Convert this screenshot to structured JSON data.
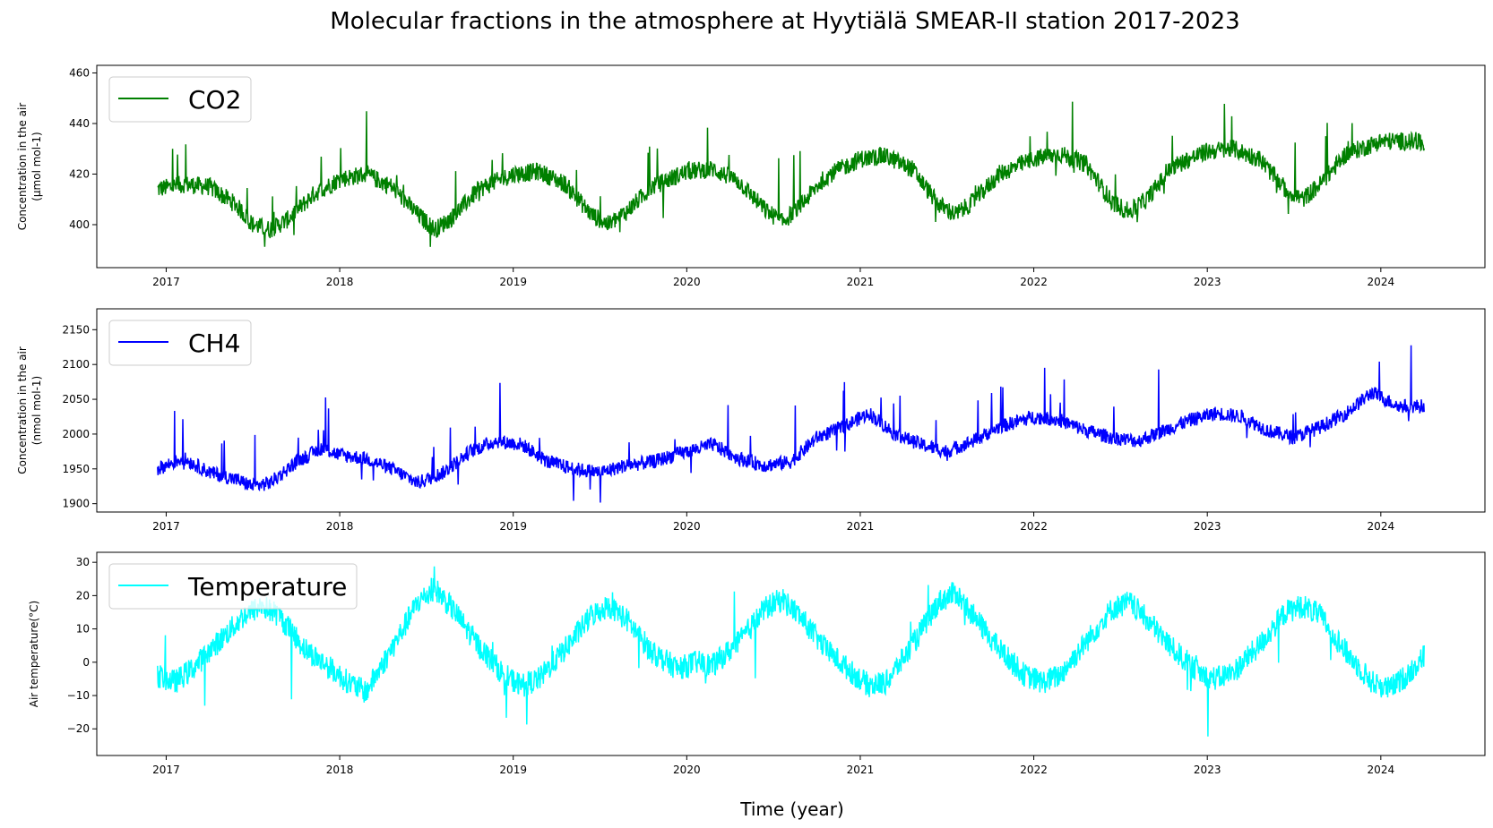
{
  "figure": {
    "title": "Molecular fractions in the atmosphere at Hyytiälä SMEAR-II station 2017-2023",
    "xlabel": "Time (year)"
  },
  "chart_data": [
    {
      "type": "line",
      "series_name": "CO2",
      "color": "#008000",
      "ylabel": [
        "Concentration in the air",
        "(μmol mol-1)"
      ],
      "xlim": [
        2016.6,
        2024.6
      ],
      "ylim": [
        383,
        463
      ],
      "xticks": [
        2017,
        2018,
        2019,
        2020,
        2021,
        2022,
        2023,
        2024
      ],
      "xtick_labels": [
        "2017",
        "2018",
        "2019",
        "2020",
        "2021",
        "2022",
        "2023",
        "2024"
      ],
      "yticks": [
        400,
        420,
        440,
        460
      ],
      "ytick_labels": [
        "400",
        "420",
        "440",
        "460"
      ],
      "legend": "top-left",
      "x": [
        2016.95,
        2017.1,
        2017.25,
        2017.4,
        2017.5,
        2017.6,
        2017.7,
        2017.85,
        2018.0,
        2018.15,
        2018.3,
        2018.45,
        2018.55,
        2018.65,
        2018.8,
        2019.0,
        2019.15,
        2019.3,
        2019.45,
        2019.55,
        2019.65,
        2019.8,
        2020.0,
        2020.15,
        2020.3,
        2020.45,
        2020.55,
        2020.65,
        2020.8,
        2021.0,
        2021.15,
        2021.3,
        2021.45,
        2021.55,
        2021.65,
        2021.8,
        2022.0,
        2022.15,
        2022.3,
        2022.45,
        2022.55,
        2022.65,
        2022.8,
        2023.0,
        2023.15,
        2023.3,
        2023.45,
        2023.55,
        2023.65,
        2023.8,
        2024.0,
        2024.15,
        2024.25
      ],
      "y": [
        414,
        416,
        415,
        408,
        400,
        398,
        402,
        412,
        418,
        420,
        415,
        404,
        398,
        403,
        414,
        420,
        421,
        416,
        404,
        400,
        405,
        415,
        421,
        422,
        417,
        406,
        401,
        407,
        419,
        426,
        427,
        422,
        408,
        404,
        409,
        420,
        426,
        428,
        424,
        409,
        405,
        410,
        423,
        429,
        430,
        426,
        414,
        410,
        416,
        428,
        433,
        433,
        432
      ]
    },
    {
      "type": "line",
      "series_name": "CH4",
      "color": "#0000ff",
      "ylabel": [
        "Concentration in the air",
        "(nmol mol-1)"
      ],
      "xlim": [
        2016.6,
        2024.6
      ],
      "ylim": [
        1888,
        2180
      ],
      "xticks": [
        2017,
        2018,
        2019,
        2020,
        2021,
        2022,
        2023,
        2024
      ],
      "xtick_labels": [
        "2017",
        "2018",
        "2019",
        "2020",
        "2021",
        "2022",
        "2023",
        "2024"
      ],
      "yticks": [
        1900,
        1950,
        2000,
        2050,
        2100,
        2150
      ],
      "ytick_labels": [
        "1900",
        "1950",
        "2000",
        "2050",
        "2100",
        "2150"
      ],
      "legend": "top-left",
      "x": [
        2016.95,
        2017.1,
        2017.25,
        2017.4,
        2017.5,
        2017.6,
        2017.75,
        2017.9,
        2018.0,
        2018.15,
        2018.3,
        2018.45,
        2018.6,
        2018.75,
        2018.9,
        2019.05,
        2019.2,
        2019.35,
        2019.5,
        2019.65,
        2019.8,
        2020.0,
        2020.15,
        2020.3,
        2020.45,
        2020.6,
        2020.75,
        2020.9,
        2021.05,
        2021.2,
        2021.35,
        2021.5,
        2021.65,
        2021.8,
        2022.0,
        2022.15,
        2022.3,
        2022.45,
        2022.6,
        2022.75,
        2022.9,
        2023.05,
        2023.2,
        2023.35,
        2023.5,
        2023.65,
        2023.8,
        2023.95,
        2024.1,
        2024.25
      ],
      "y": [
        1950,
        1965,
        1945,
        1935,
        1925,
        1930,
        1960,
        1980,
        1970,
        1965,
        1950,
        1930,
        1945,
        1975,
        1990,
        1985,
        1960,
        1950,
        1945,
        1955,
        1960,
        1975,
        1985,
        1965,
        1955,
        1960,
        1995,
        2010,
        2030,
        2000,
        1985,
        1975,
        1990,
        2010,
        2025,
        2020,
        2005,
        1995,
        1990,
        2005,
        2020,
        2030,
        2025,
        2005,
        1995,
        2010,
        2030,
        2060,
        2040,
        2040
      ]
    },
    {
      "type": "line",
      "series_name": "Temperature",
      "color": "#00ffff",
      "ylabel": [
        "Air temperature(°C)"
      ],
      "xlim": [
        2016.6,
        2024.6
      ],
      "ylim": [
        -28,
        33
      ],
      "xticks": [
        2017,
        2018,
        2019,
        2020,
        2021,
        2022,
        2023,
        2024
      ],
      "xtick_labels": [
        "2017",
        "2018",
        "2019",
        "2020",
        "2021",
        "2022",
        "2023",
        "2024"
      ],
      "yticks": [
        -20,
        -10,
        0,
        10,
        20,
        30
      ],
      "ytick_labels": [
        "−20",
        "−10",
        "0",
        "10",
        "20",
        "30"
      ],
      "legend": "top-left",
      "x": [
        2016.95,
        2017.05,
        2017.15,
        2017.3,
        2017.45,
        2017.55,
        2017.65,
        2017.8,
        2017.95,
        2018.05,
        2018.15,
        2018.3,
        2018.45,
        2018.55,
        2018.65,
        2018.8,
        2018.95,
        2019.05,
        2019.15,
        2019.3,
        2019.45,
        2019.55,
        2019.65,
        2019.8,
        2019.95,
        2020.05,
        2020.15,
        2020.3,
        2020.45,
        2020.55,
        2020.65,
        2020.8,
        2020.95,
        2021.05,
        2021.15,
        2021.3,
        2021.45,
        2021.55,
        2021.65,
        2021.8,
        2021.95,
        2022.05,
        2022.15,
        2022.3,
        2022.45,
        2022.55,
        2022.65,
        2022.8,
        2022.95,
        2023.05,
        2023.15,
        2023.3,
        2023.45,
        2023.55,
        2023.65,
        2023.8,
        2023.95,
        2024.05,
        2024.15,
        2024.25
      ],
      "y": [
        -4,
        -6,
        -2,
        6,
        14,
        17,
        14,
        4,
        -2,
        -6,
        -9,
        4,
        18,
        22,
        16,
        5,
        -4,
        -7,
        -5,
        4,
        14,
        17,
        13,
        3,
        -2,
        0,
        -1,
        6,
        16,
        19,
        14,
        4,
        -3,
        -7,
        -6,
        5,
        18,
        21,
        14,
        4,
        -4,
        -6,
        -4,
        6,
        16,
        18,
        13,
        4,
        -3,
        -5,
        -3,
        5,
        15,
        17,
        14,
        3,
        -6,
        -8,
        -4,
        2
      ]
    }
  ]
}
